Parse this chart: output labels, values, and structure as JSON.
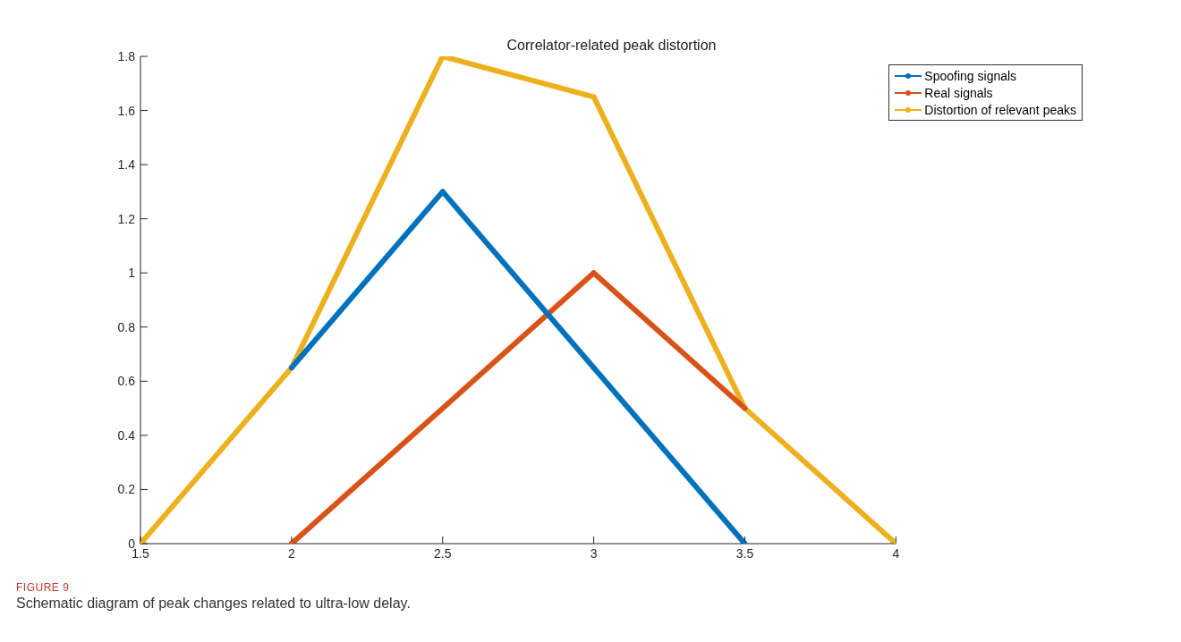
{
  "chart_data": {
    "type": "line",
    "title": "Correlator-related peak distortion",
    "series": [
      {
        "name": "Spoofing signals",
        "color": "#0072bd",
        "x": [
          2,
          2.5,
          3,
          3.5
        ],
        "values": [
          0.65,
          1.3,
          0.65,
          0
        ]
      },
      {
        "name": "Real signals",
        "color": "#d95319",
        "x": [
          2,
          3,
          3.5
        ],
        "values": [
          0,
          1,
          0.5
        ]
      },
      {
        "name": "Distortion of relevant peaks",
        "color": "#edb120",
        "x": [
          1.5,
          2,
          2.5,
          3,
          3.5,
          4
        ],
        "values": [
          0,
          0.65,
          1.8,
          1.65,
          0.5,
          0
        ]
      }
    ],
    "xlim": [
      1.5,
      4
    ],
    "xticks": [
      1.5,
      2,
      2.5,
      3,
      3.5,
      4
    ],
    "ylim": [
      0,
      1.8
    ],
    "yticks": [
      0,
      0.2,
      0.4,
      0.6,
      0.8,
      1,
      1.2,
      1.4,
      1.6,
      1.8
    ],
    "grid": false,
    "legend": "top right",
    "marker": "circle",
    "line_style": "solid",
    "annotations": [
      "FIGURE 9",
      "Schematic diagram of peak changes related to ultra-low delay."
    ]
  }
}
